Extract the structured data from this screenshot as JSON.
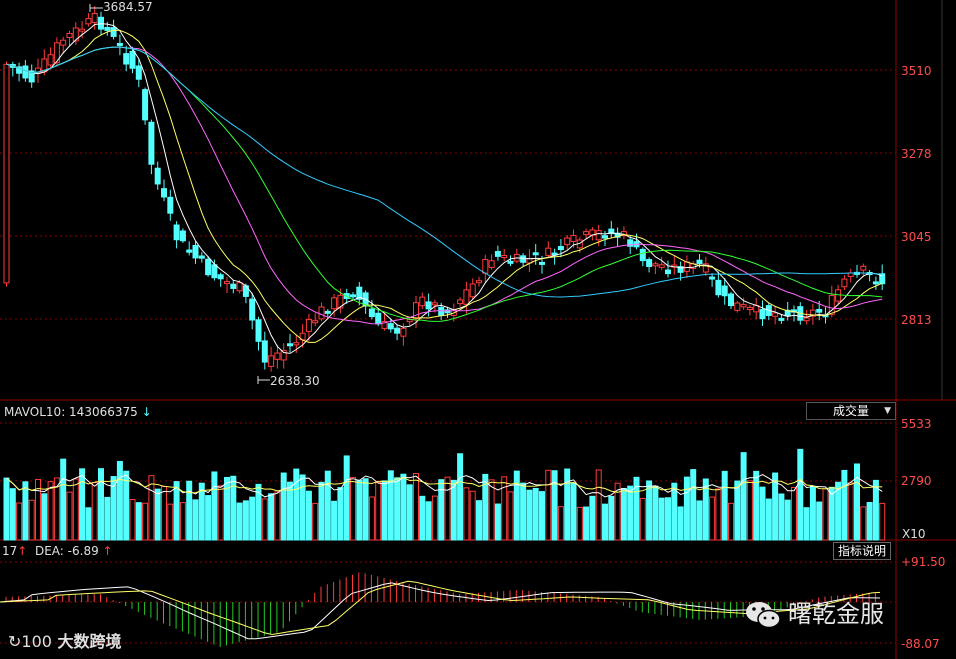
{
  "chart_data": {
    "type": "candlestick",
    "main": {
      "y_ticks": [
        "3510",
        "3278",
        "3045",
        "2813"
      ],
      "high_label": "3684.57",
      "low_label": "2638.30",
      "candles": []
    },
    "volume": {
      "title": "MAVOL10: 143066375",
      "title_arrow": "↓",
      "y_ticks": [
        "5533",
        "2790"
      ],
      "unit": "X10",
      "selector": "成交量"
    },
    "macd": {
      "title_prefix": "17",
      "dea_label": "DEA: -6.89",
      "arrow": "↑",
      "y_ticks": [
        "+91.50",
        "-88.07"
      ],
      "button": "指标说明"
    }
  },
  "watermarks": {
    "left": "大数跨境",
    "right": "曙乾金服"
  },
  "colors": {
    "up": "#ff3b3b",
    "down": "#54ffff",
    "grid": "#8b0000",
    "axis_text": "#ff4d4d"
  }
}
